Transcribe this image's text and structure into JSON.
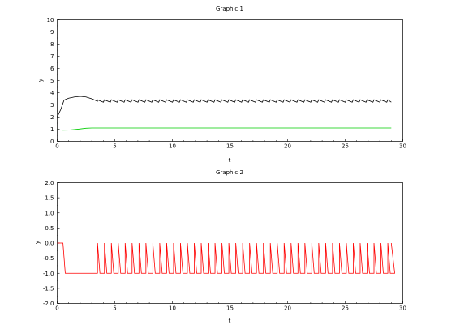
{
  "chart_data": [
    {
      "type": "line",
      "title": "Graphic 1",
      "xlabel": "t",
      "ylabel": "y",
      "xlim": [
        0,
        30
      ],
      "ylim": [
        0,
        10
      ],
      "xticks": [
        "0",
        "5",
        "10",
        "15",
        "20",
        "25",
        "30"
      ],
      "yticks": [
        "0",
        "1",
        "2",
        "3",
        "4",
        "5",
        "6",
        "7",
        "8",
        "9",
        "10"
      ],
      "grid": false,
      "series": [
        {
          "color": "#000000",
          "points": [
            [
              0,
              2.0
            ],
            [
              0.3,
              2.6
            ],
            [
              0.6,
              3.4
            ],
            [
              1.0,
              3.55
            ],
            [
              1.5,
              3.65
            ],
            [
              2.0,
              3.7
            ],
            [
              2.5,
              3.65
            ],
            [
              3.0,
              3.5
            ],
            [
              3.5,
              3.3
            ],
            [
              3.5,
              3.3
            ],
            [
              29,
              3.25
            ]
          ],
          "sawtooth": {
            "start": 3.5,
            "end": 29,
            "period": 0.6,
            "low": 3.22,
            "high": 3.42
          }
        },
        {
          "color": "#00cc00",
          "points": [
            [
              0,
              0.95
            ],
            [
              0.5,
              0.92
            ],
            [
              1.0,
              0.93
            ],
            [
              1.5,
              0.97
            ],
            [
              2.0,
              1.02
            ],
            [
              2.5,
              1.08
            ],
            [
              3.0,
              1.1
            ],
            [
              29,
              1.1
            ]
          ]
        }
      ]
    },
    {
      "type": "line",
      "title": "Graphic 2",
      "xlabel": "t",
      "ylabel": "y",
      "xlim": [
        0,
        30
      ],
      "ylim": [
        -2.0,
        2.0
      ],
      "xticks": [
        "0",
        "5",
        "10",
        "15",
        "20",
        "25",
        "30"
      ],
      "yticks": [
        "-2.0",
        "-1.5",
        "-1.0",
        "-0.5",
        "0.0",
        "0.5",
        "1.0",
        "1.5",
        "2.0"
      ],
      "grid": false,
      "series": [
        {
          "color": "#ff0000",
          "base": [
            [
              0,
              0
            ],
            [
              0.5,
              0
            ],
            [
              0.7,
              -1
            ],
            [
              3.5,
              -1
            ]
          ],
          "pulses": {
            "start": 3.5,
            "end": 29,
            "period": 0.6,
            "low": -1,
            "high": 0
          }
        }
      ]
    }
  ]
}
